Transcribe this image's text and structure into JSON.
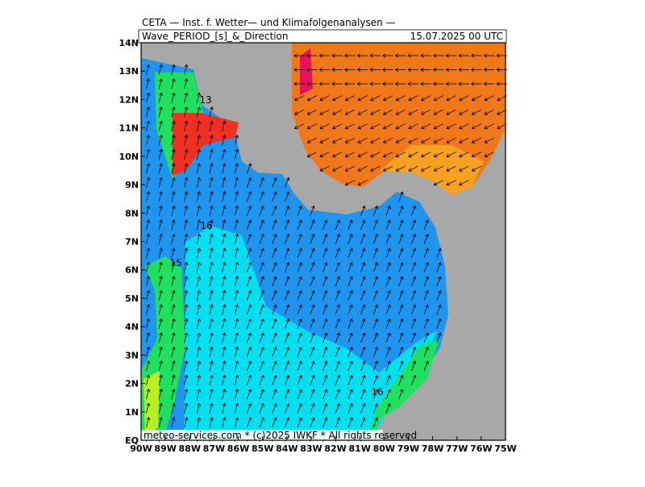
{
  "header": {
    "title": "CETA — Inst. f. Wetter— und Klimafolgenanalysen —",
    "product": "Wave_PERIOD_[s]_&_Direction",
    "valid_time": "15.07.2025 00 UTC"
  },
  "x_axis": {
    "labels": [
      "90W",
      "89W",
      "88W",
      "87W",
      "86W",
      "85W",
      "84W",
      "83W",
      "82W",
      "81W",
      "80W",
      "79W",
      "78W",
      "77W",
      "76W",
      "75W"
    ]
  },
  "y_axis": {
    "labels": [
      "EQ",
      "1N",
      "2N",
      "3N",
      "4N",
      "5N",
      "6N",
      "7N",
      "8N",
      "9N",
      "10N",
      "11N",
      "12N",
      "13N",
      "14N"
    ]
  },
  "contour_labels": [
    "13",
    "16",
    "15",
    "16"
  ],
  "footer": "meteo-services.com * (c)2025 IWKF * All rights reserved"
}
